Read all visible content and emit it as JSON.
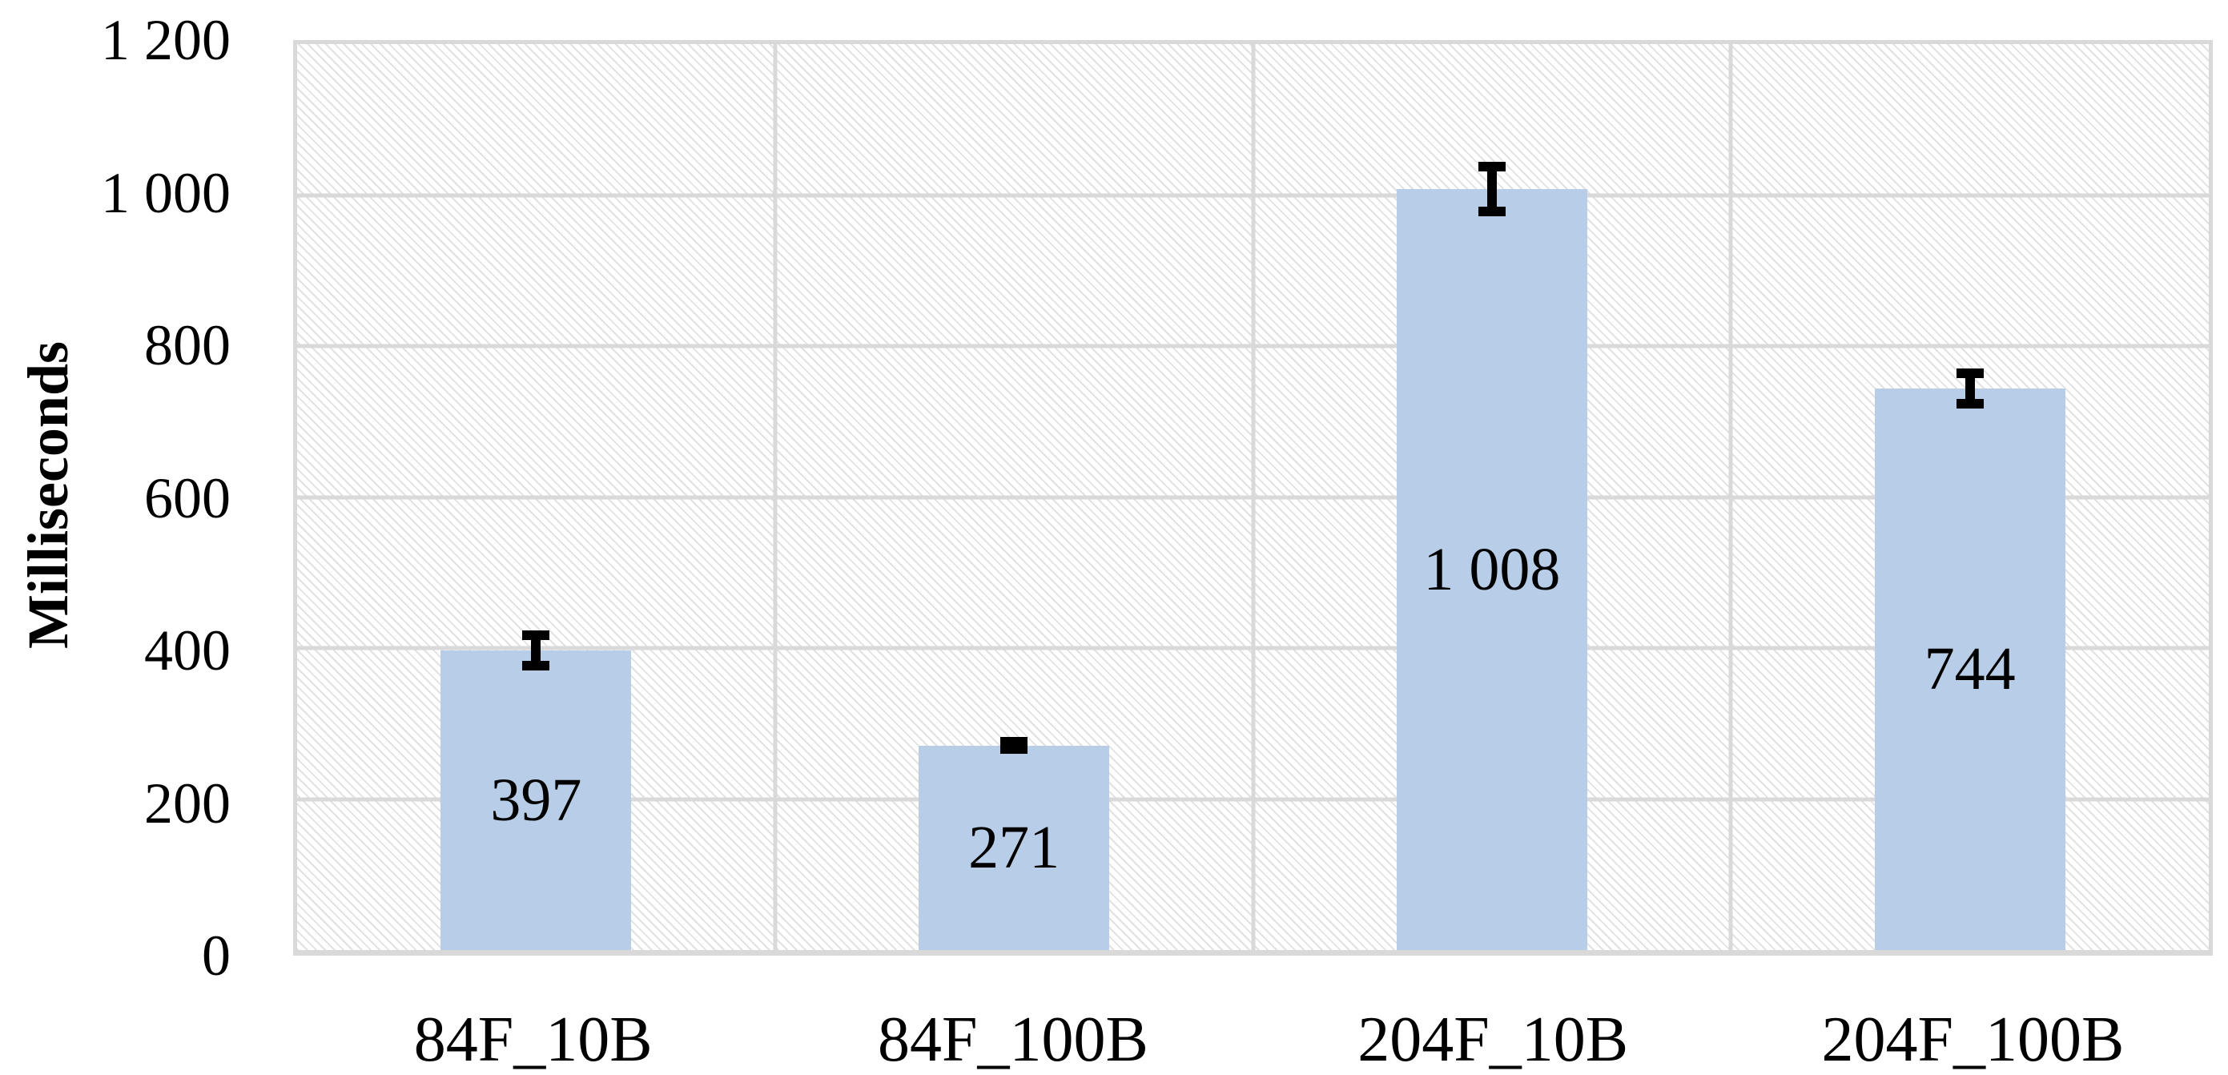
{
  "chart_data": {
    "type": "bar",
    "title": "",
    "xlabel": "",
    "ylabel": "Milliseconds",
    "categories": [
      "84F_10B",
      "84F_100B",
      "204F_10B",
      "204F_100B"
    ],
    "values": [
      397,
      271,
      1008,
      744
    ],
    "value_labels": [
      "397",
      "271",
      "1 008",
      "744"
    ],
    "error_bars": [
      20,
      5,
      30,
      20
    ],
    "ylim": [
      0,
      1200
    ],
    "y_ticks": [
      {
        "value": 1200,
        "label": "1 200"
      },
      {
        "value": 1000,
        "label": "1 000"
      },
      {
        "value": 800,
        "label": "800"
      },
      {
        "value": 600,
        "label": "600"
      },
      {
        "value": 400,
        "label": "400"
      },
      {
        "value": 200,
        "label": "200"
      },
      {
        "value": 0,
        "label": "0"
      }
    ],
    "grid": "horizontal and vertical gridlines, hatched plot background",
    "legend": "none",
    "colors": {
      "bar_fill": "#b8cde7",
      "gridline": "#d9d9d9",
      "error_bar": "#000000",
      "text": "#000000",
      "background": "#ffffff"
    },
    "bar_width_fraction": 0.0997
  }
}
